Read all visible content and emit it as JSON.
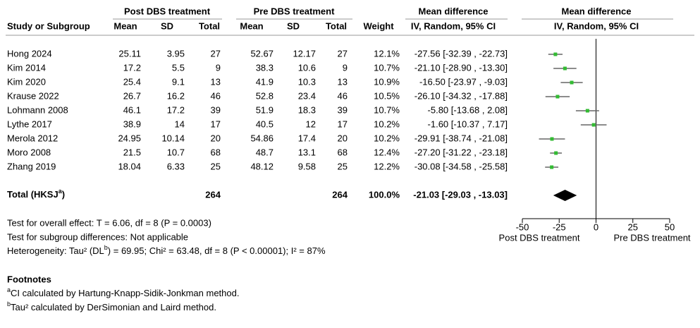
{
  "table": {
    "group_headers": [
      "Post DBS treatment",
      "Pre DBS treatment",
      "Mean difference",
      "Mean difference"
    ],
    "columns": [
      "Study or Subgroup",
      "Mean",
      "SD",
      "Total",
      "Mean",
      "SD",
      "Total",
      "Weight",
      "IV, Random, 95% CI",
      "IV, Random, 95% CI"
    ],
    "rows": [
      [
        "Hong 2024",
        "25.11",
        "3.95",
        "27",
        "52.67",
        "12.17",
        "27",
        "12.1%",
        "-27.56 [-32.39 , -22.73]"
      ],
      [
        "Kim 2014",
        "17.2",
        "5.5",
        "9",
        "38.3",
        "10.6",
        "9",
        "10.7%",
        "-21.10 [-28.90 , -13.30]"
      ],
      [
        "Kim 2020",
        "25.4",
        "9.1",
        "13",
        "41.9",
        "10.3",
        "13",
        "10.9%",
        "-16.50 [-23.97 , -9.03]"
      ],
      [
        "Krause 2022",
        "26.7",
        "16.2",
        "46",
        "52.8",
        "23.4",
        "46",
        "10.5%",
        "-26.10 [-34.32 , -17.88]"
      ],
      [
        "Lohmann 2008",
        "46.1",
        "17.2",
        "39",
        "51.9",
        "18.3",
        "39",
        "10.7%",
        "-5.80 [-13.68 , 2.08]"
      ],
      [
        "Lythe 2017",
        "38.9",
        "14",
        "17",
        "40.5",
        "12",
        "17",
        "10.2%",
        "-1.60 [-10.37 , 7.17]"
      ],
      [
        "Merola 2012",
        "24.95",
        "10.14",
        "20",
        "54.86",
        "17.4",
        "20",
        "10.2%",
        "-29.91 [-38.74 , -21.08]"
      ],
      [
        "Moro 2008",
        "21.5",
        "10.7",
        "68",
        "48.7",
        "13.1",
        "68",
        "12.4%",
        "-27.20 [-31.22 , -23.18]"
      ],
      [
        "Zhang 2019",
        "18.04",
        "6.33",
        "25",
        "48.12",
        "9.58",
        "25",
        "12.2%",
        "-30.08 [-34.58 , -25.58]"
      ]
    ],
    "total": {
      "label": "Total (HKSJ",
      "label_sup": "a",
      "label_end": ")",
      "post_total": "264",
      "pre_total": "264",
      "weight": "100.0%",
      "ci": "-21.03 [-29.03 , -13.03]"
    }
  },
  "notes": {
    "overall": "Test for overall effect: T = 6.06, df = 8 (P = 0.0003)",
    "subgroup": "Test for subgroup differences: Not applicable",
    "heterogeneity": [
      "Heterogeneity: Tau² (DL",
      "b",
      ") = 69.95; Chi² = 63.48, df = 8 (P < 0.00001); I² = 87%"
    ],
    "footnotes_title": "Footnotes",
    "footnotes": [
      [
        "a",
        "CI calculated by Hartung-Knapp-Sidik-Jonkman method."
      ],
      [
        "b",
        "Tau² calculated by DerSimonian and Laird method."
      ]
    ]
  },
  "chart_data": {
    "type": "forest",
    "values": [
      -27.56,
      -21.1,
      -16.5,
      -26.1,
      -5.8,
      -1.6,
      -29.91,
      -27.2,
      -30.08
    ],
    "ci_low": [
      -32.39,
      -28.9,
      -23.97,
      -34.32,
      -13.68,
      -10.37,
      -38.74,
      -31.22,
      -34.58
    ],
    "ci_high": [
      -22.73,
      -13.3,
      -9.03,
      -17.88,
      2.08,
      7.17,
      -21.08,
      -23.18,
      -25.58
    ],
    "total": {
      "value": -21.03,
      "ci_low": -29.03,
      "ci_high": -13.03
    },
    "xlim": [
      -50,
      50
    ],
    "xticks": [
      -50,
      -25,
      0,
      25,
      50
    ],
    "xlabel_left": "Post DBS treatment",
    "xlabel_right": "Pre DBS treatment",
    "point_color": "#33bb33",
    "ci_color": "#666666",
    "total_color": "#000000"
  }
}
